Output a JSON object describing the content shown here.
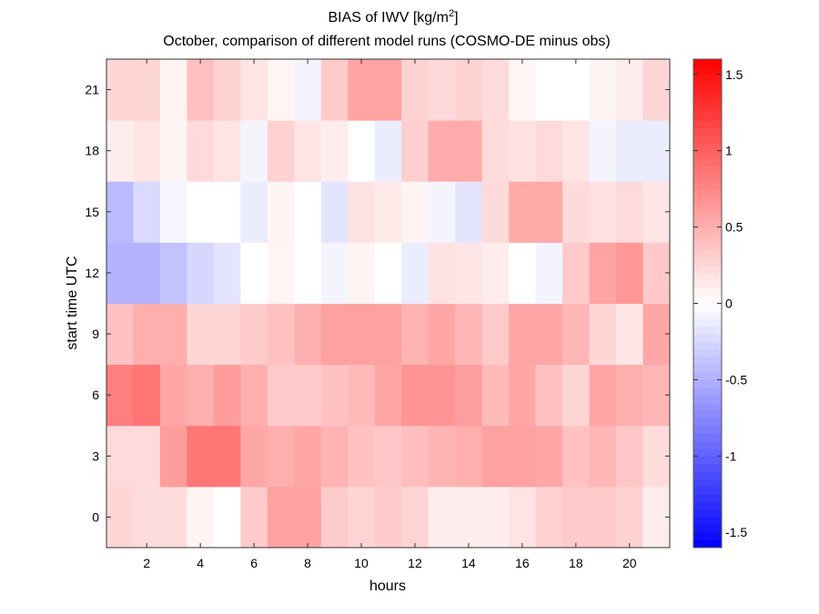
{
  "chart_data": {
    "type": "heatmap",
    "title": "BIAS of IWV [kg/m",
    "title_superscript": "2",
    "title_suffix": "]",
    "subtitle": "October, comparison of different model runs (COSMO-DE minus obs)",
    "xlabel": "hours",
    "ylabel": "start time UTC",
    "x": [
      1,
      2,
      3,
      4,
      5,
      6,
      7,
      8,
      9,
      10,
      11,
      12,
      13,
      14,
      15,
      16,
      17,
      18,
      19,
      20,
      21
    ],
    "y": [
      0,
      3,
      6,
      9,
      12,
      15,
      18,
      21
    ],
    "xlim": [
      0.5,
      21.5
    ],
    "ylim": [
      -1.5,
      22.5
    ],
    "xticks": [
      2,
      4,
      6,
      8,
      10,
      12,
      14,
      16,
      18,
      20
    ],
    "xtick_labels": [
      "2",
      "4",
      "6",
      "8",
      "10",
      "12",
      "14",
      "16",
      "18",
      "20"
    ],
    "yticks": [
      0,
      3,
      6,
      9,
      12,
      15,
      18,
      21
    ],
    "ytick_labels": [
      "0",
      "3",
      "6",
      "9",
      "12",
      "15",
      "18",
      "21"
    ],
    "values_by_start_time": {
      "0": [
        0.26,
        0.22,
        0.22,
        0.07,
        0.0,
        0.33,
        0.59,
        0.59,
        0.33,
        0.27,
        0.33,
        0.27,
        0.11,
        0.11,
        0.11,
        0.17,
        0.29,
        0.33,
        0.33,
        0.29,
        0.11
      ],
      "3": [
        0.23,
        0.23,
        0.62,
        0.86,
        0.86,
        0.56,
        0.51,
        0.56,
        0.48,
        0.39,
        0.35,
        0.41,
        0.47,
        0.51,
        0.59,
        0.59,
        0.56,
        0.39,
        0.46,
        0.35,
        0.22
      ],
      "6": [
        0.81,
        0.87,
        0.56,
        0.51,
        0.62,
        0.51,
        0.33,
        0.33,
        0.39,
        0.43,
        0.56,
        0.67,
        0.67,
        0.61,
        0.43,
        0.56,
        0.39,
        0.26,
        0.56,
        0.51,
        0.46
      ],
      "9": [
        0.39,
        0.51,
        0.51,
        0.26,
        0.26,
        0.33,
        0.39,
        0.49,
        0.59,
        0.59,
        0.59,
        0.47,
        0.56,
        0.46,
        0.33,
        0.56,
        0.56,
        0.46,
        0.26,
        0.16,
        0.56
      ],
      "12": [
        -0.48,
        -0.48,
        -0.38,
        -0.26,
        -0.17,
        0.0,
        0.06,
        0.0,
        -0.07,
        0.07,
        0.0,
        -0.12,
        0.18,
        0.16,
        0.12,
        0.0,
        -0.07,
        0.33,
        0.58,
        0.65,
        0.34
      ],
      "15": [
        -0.43,
        -0.23,
        -0.06,
        0.0,
        0.0,
        -0.12,
        0.07,
        0.0,
        -0.17,
        0.18,
        0.13,
        0.07,
        -0.07,
        -0.17,
        0.23,
        0.54,
        0.54,
        0.23,
        0.19,
        0.23,
        0.17
      ],
      "18": [
        0.11,
        0.17,
        0.07,
        0.23,
        0.17,
        -0.07,
        0.29,
        0.17,
        0.11,
        0.0,
        -0.12,
        0.3,
        0.53,
        0.53,
        0.22,
        0.19,
        0.23,
        0.17,
        -0.07,
        -0.12,
        -0.12
      ],
      "21": [
        0.26,
        0.26,
        0.08,
        0.4,
        0.28,
        0.17,
        0.06,
        -0.07,
        0.33,
        0.58,
        0.58,
        0.28,
        0.24,
        0.28,
        0.22,
        0.06,
        0.0,
        0.0,
        0.07,
        0.12,
        0.26
      ]
    },
    "colorbar": {
      "colormap": "blue-white-red",
      "clim": [
        -1.6,
        1.6
      ],
      "ticks": [
        -1.5,
        -1,
        -0.5,
        0,
        0.5,
        1,
        1.5
      ],
      "tick_labels": [
        "-1.5",
        "-1",
        "-0.5",
        "0",
        "0.5",
        "1",
        "1.5"
      ],
      "low_color": "#0000ff",
      "mid_color": "#ffffff",
      "high_color": "#ff0000",
      "placement": "right"
    },
    "grid": false
  }
}
